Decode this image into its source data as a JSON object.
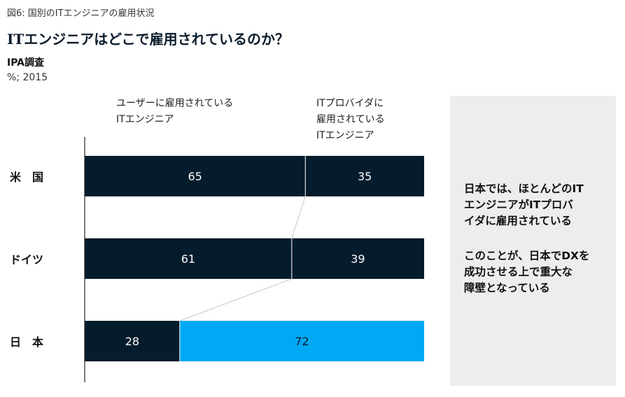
{
  "figure_label": "図6: 国別のITエンジニアの雇用状況",
  "colors": {
    "navy": "#051c2c",
    "cyan": "#00a9f4",
    "panel": "#ededed",
    "connector": "#c8c8c8"
  },
  "chart_data": {
    "type": "bar",
    "stacked": true,
    "orientation": "horizontal",
    "title": "ITエンジニアはどこで雇用されているのか？",
    "subtitle": "IPA調査",
    "unit": "%; 2015",
    "categories": [
      "米　国",
      "ドイツ",
      "日　本"
    ],
    "series": [
      {
        "name": "ユーザーに雇用されている\nITエンジニア",
        "values": [
          65,
          61,
          28
        ]
      },
      {
        "name": "ITプロバイダに\n雇用されている\nITエンジニア",
        "values": [
          35,
          39,
          72
        ]
      }
    ],
    "xlim": [
      0,
      100
    ],
    "highlight": {
      "category": "日　本",
      "series": 1,
      "color": "#00a9f4"
    }
  },
  "side_panel": {
    "paragraph1": "日本では、ほとんどのIT\nエンジニアがITプロバ\nイダに雇用されている",
    "paragraph2": "このことが、日本でDXを\n成功させる上で重大な\n障壁となっている"
  }
}
